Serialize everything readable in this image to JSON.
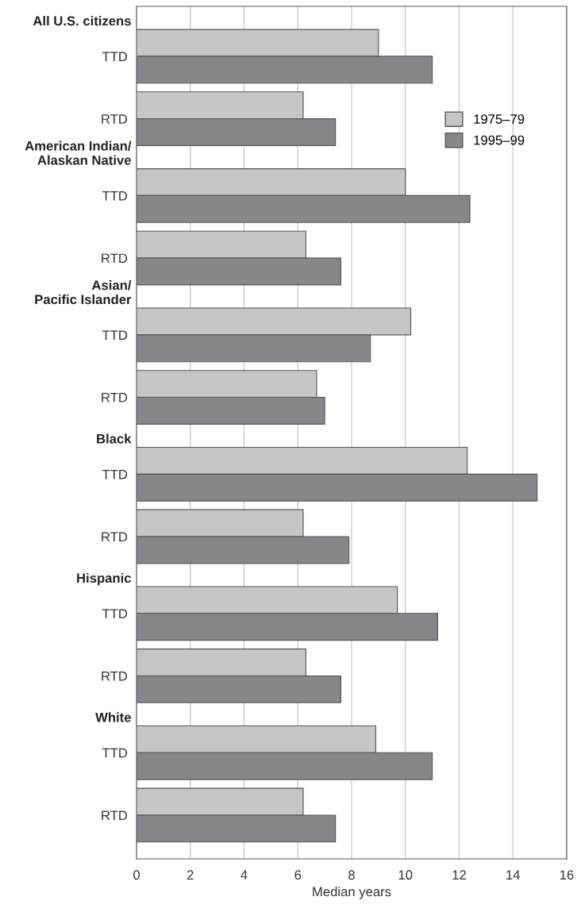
{
  "chart_data": {
    "type": "bar",
    "orientation": "horizontal",
    "categories": [
      "TTD",
      "RTD",
      "TTD",
      "RTD",
      "TTD",
      "RTD",
      "TTD",
      "RTD",
      "TTD",
      "RTD",
      "TTD",
      "RTD"
    ],
    "series": [
      {
        "name": "1975–79",
        "color": "#c5c6c8",
        "values": [
          9.0,
          6.2,
          10.0,
          6.3,
          10.2,
          6.7,
          12.3,
          6.2,
          9.7,
          6.3,
          8.9,
          6.2
        ]
      },
      {
        "name": "1995–99",
        "color": "#86878b",
        "values": [
          11.0,
          7.4,
          12.4,
          7.6,
          8.7,
          7.0,
          14.9,
          7.9,
          11.2,
          7.6,
          11.0,
          7.4
        ]
      }
    ],
    "annotations": [
      "All U.S. citizens",
      "American Indian/\nAlaskan Native",
      "Asian/\nPacific Islander",
      "Black",
      "Hispanic",
      "White"
    ],
    "xlabel": "Median years",
    "xlim": [
      0,
      16
    ],
    "xticks": [
      0,
      2,
      4,
      6,
      8,
      10,
      12,
      14,
      16
    ],
    "grid": "x",
    "legend": "top right"
  }
}
